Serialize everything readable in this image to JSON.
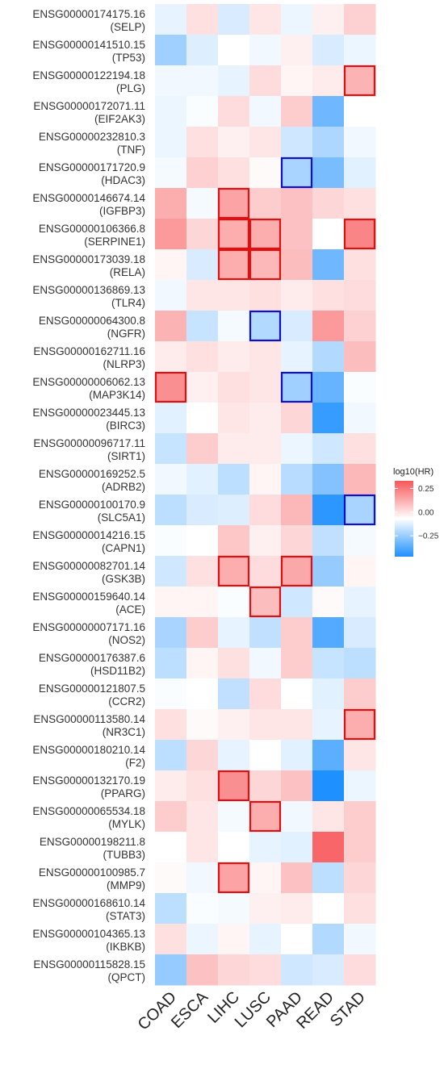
{
  "chart_data": {
    "type": "heatmap",
    "columns": [
      "COAD",
      "ESCA",
      "LIHC",
      "LUSC",
      "PAAD",
      "READ",
      "STAD"
    ],
    "rows": [
      {
        "id": "ENSG00000174175.16",
        "gene": "(SELP)",
        "values": [
          -0.05,
          0.06,
          -0.08,
          0.05,
          -0.04,
          0.03,
          0.09
        ],
        "highlight": [
          "",
          "",
          "",
          "",
          "",
          "",
          ""
        ]
      },
      {
        "id": "ENSG00000141510.15",
        "gene": "(TP53)",
        "values": [
          -0.2,
          -0.07,
          0.0,
          -0.03,
          0.03,
          -0.08,
          -0.04
        ],
        "highlight": [
          "",
          "",
          "",
          "",
          "",
          "",
          ""
        ]
      },
      {
        "id": "ENSG00000122194.18",
        "gene": "(PLG)",
        "values": [
          -0.03,
          -0.03,
          -0.05,
          0.07,
          0.02,
          0.04,
          0.15
        ],
        "highlight": [
          "",
          "",
          "",
          "",
          "",
          "",
          "pos"
        ]
      },
      {
        "id": "ENSG00000172071.11",
        "gene": "(EIF2AK3)",
        "values": [
          -0.04,
          -0.01,
          0.07,
          -0.03,
          0.1,
          -0.3,
          0.0
        ],
        "highlight": [
          "",
          "",
          "",
          "",
          "",
          "",
          ""
        ]
      },
      {
        "id": "ENSG00000232810.3",
        "gene": "(TNF)",
        "values": [
          -0.04,
          0.06,
          0.03,
          0.05,
          -0.1,
          -0.17,
          -0.03
        ],
        "highlight": [
          "",
          "",
          "",
          "",
          "",
          "",
          ""
        ]
      },
      {
        "id": "ENSG00000171720.9",
        "gene": "(HDAC3)",
        "values": [
          -0.02,
          0.09,
          0.06,
          0.01,
          -0.18,
          -0.28,
          -0.06
        ],
        "highlight": [
          "",
          "",
          "",
          "",
          "neg",
          "",
          ""
        ]
      },
      {
        "id": "ENSG00000146674.14",
        "gene": "(IGFBP3)",
        "values": [
          0.16,
          -0.02,
          0.18,
          0.1,
          0.12,
          0.08,
          0.06
        ],
        "highlight": [
          "",
          "",
          "pos",
          "",
          "",
          "",
          ""
        ]
      },
      {
        "id": "ENSG00000106366.8",
        "gene": "(SERPINE1)",
        "values": [
          0.2,
          0.08,
          0.16,
          0.16,
          0.12,
          0.0,
          0.24
        ],
        "highlight": [
          "",
          "",
          "pos",
          "pos",
          "",
          "",
          "pos"
        ]
      },
      {
        "id": "ENSG00000173039.18",
        "gene": "(RELA)",
        "values": [
          0.02,
          -0.08,
          0.16,
          0.14,
          0.13,
          -0.3,
          0.06
        ],
        "highlight": [
          "",
          "",
          "pos",
          "pos",
          "",
          "",
          ""
        ]
      },
      {
        "id": "ENSG00000136869.13",
        "gene": "(TLR4)",
        "values": [
          -0.03,
          0.05,
          0.05,
          0.06,
          0.04,
          0.06,
          0.07
        ],
        "highlight": [
          "",
          "",
          "",
          "",
          "",
          "",
          ""
        ]
      },
      {
        "id": "ENSG00000064300.8",
        "gene": "(NGFR)",
        "values": [
          0.15,
          -0.12,
          -0.02,
          -0.16,
          -0.08,
          0.2,
          0.09
        ],
        "highlight": [
          "",
          "",
          "",
          "neg",
          "",
          "",
          ""
        ]
      },
      {
        "id": "ENSG00000162711.16",
        "gene": "(NLRP3)",
        "values": [
          0.04,
          0.06,
          0.04,
          0.05,
          -0.05,
          -0.16,
          0.13
        ],
        "highlight": [
          "",
          "",
          "",
          "",
          "",
          "",
          ""
        ]
      },
      {
        "id": "ENSG00000006062.13",
        "gene": "(MAP3K14)",
        "values": [
          0.22,
          0.03,
          0.06,
          0.05,
          -0.2,
          -0.32,
          -0.01
        ],
        "highlight": [
          "pos",
          "",
          "",
          "",
          "neg",
          "",
          ""
        ]
      },
      {
        "id": "ENSG00000023445.13",
        "gene": "(BIRC3)",
        "values": [
          -0.06,
          0.0,
          0.05,
          0.04,
          0.08,
          -0.42,
          -0.03
        ],
        "highlight": [
          "",
          "",
          "",
          "",
          "",
          "",
          ""
        ]
      },
      {
        "id": "ENSG00000096717.11",
        "gene": "(SIRT1)",
        "values": [
          -0.12,
          0.1,
          0.04,
          0.04,
          -0.04,
          -0.1,
          0.06
        ],
        "highlight": [
          "",
          "",
          "",
          "",
          "",
          "",
          ""
        ]
      },
      {
        "id": "ENSG00000169252.5",
        "gene": "(ADRB2)",
        "values": [
          -0.03,
          -0.06,
          -0.14,
          0.02,
          -0.15,
          -0.26,
          0.14
        ],
        "highlight": [
          "",
          "",
          "",
          "",
          "",
          "",
          ""
        ]
      },
      {
        "id": "ENSG00000100170.9",
        "gene": "(SLC5A1)",
        "values": [
          -0.14,
          -0.08,
          -0.07,
          0.07,
          0.14,
          -0.44,
          -0.18
        ],
        "highlight": [
          "",
          "",
          "",
          "",
          "",
          "",
          "neg"
        ]
      },
      {
        "id": "ENSG00000014216.15",
        "gene": "(CAPN1)",
        "values": [
          -0.01,
          0.0,
          0.11,
          0.03,
          0.08,
          -0.13,
          -0.02
        ],
        "highlight": [
          "",
          "",
          "",
          "",
          "",
          "",
          ""
        ]
      },
      {
        "id": "ENSG00000082701.14",
        "gene": "(GSK3B)",
        "values": [
          -0.1,
          0.06,
          0.16,
          0.07,
          0.17,
          -0.22,
          0.02
        ],
        "highlight": [
          "",
          "",
          "pos",
          "",
          "pos",
          "",
          ""
        ]
      },
      {
        "id": "ENSG00000159640.14",
        "gene": "(ACE)",
        "values": [
          0.02,
          0.02,
          -0.01,
          0.13,
          -0.1,
          0.01,
          -0.05
        ],
        "highlight": [
          "",
          "",
          "",
          "pos",
          "",
          "",
          ""
        ]
      },
      {
        "id": "ENSG00000007171.16",
        "gene": "(NOS2)",
        "values": [
          -0.18,
          0.1,
          -0.05,
          -0.13,
          0.1,
          -0.36,
          -0.08
        ],
        "highlight": [
          "",
          "",
          "",
          "",
          "",
          "",
          ""
        ]
      },
      {
        "id": "ENSG00000176387.6",
        "gene": "(HSD11B2)",
        "values": [
          -0.14,
          0.02,
          0.06,
          -0.03,
          0.1,
          -0.12,
          -0.14
        ],
        "highlight": [
          "",
          "",
          "",
          "",
          "",
          "",
          ""
        ]
      },
      {
        "id": "ENSG00000121807.5",
        "gene": "(CCR2)",
        "values": [
          -0.01,
          0.0,
          -0.13,
          0.07,
          0.0,
          -0.06,
          0.1
        ],
        "highlight": [
          "",
          "",
          "",
          "",
          "",
          "",
          ""
        ]
      },
      {
        "id": "ENSG00000113580.14",
        "gene": "(NR3C1)",
        "values": [
          0.06,
          0.01,
          0.03,
          0.05,
          0.05,
          -0.05,
          0.16
        ],
        "highlight": [
          "",
          "",
          "",
          "",
          "",
          "",
          "pos"
        ]
      },
      {
        "id": "ENSG00000180210.14",
        "gene": "(F2)",
        "values": [
          -0.14,
          0.08,
          -0.05,
          0.0,
          -0.06,
          -0.34,
          0.05
        ],
        "highlight": [
          "",
          "",
          "",
          "",
          "",
          "",
          ""
        ]
      },
      {
        "id": "ENSG00000132170.19",
        "gene": "(PPARG)",
        "values": [
          0.04,
          0.06,
          0.22,
          0.08,
          0.12,
          -0.47,
          -0.04
        ],
        "highlight": [
          "",
          "",
          "pos",
          "",
          "",
          "",
          ""
        ]
      },
      {
        "id": "ENSG00000065534.18",
        "gene": "(MYLK)",
        "values": [
          0.1,
          0.05,
          -0.02,
          0.16,
          -0.03,
          0.05,
          0.1
        ],
        "highlight": [
          "",
          "",
          "",
          "pos",
          "",
          "",
          ""
        ]
      },
      {
        "id": "ENSG00000198211.8",
        "gene": "(TUBB3)",
        "values": [
          0.0,
          0.05,
          0.0,
          -0.05,
          -0.06,
          0.3,
          0.1
        ],
        "highlight": [
          "",
          "",
          "",
          "",
          "",
          "",
          ""
        ]
      },
      {
        "id": "ENSG00000100985.7",
        "gene": "(MMP9)",
        "values": [
          0.01,
          -0.03,
          0.18,
          0.02,
          0.12,
          -0.14,
          0.08
        ],
        "highlight": [
          "",
          "",
          "pos",
          "",
          "",
          "",
          ""
        ]
      },
      {
        "id": "ENSG00000168610.14",
        "gene": "(STAT3)",
        "values": [
          -0.14,
          -0.01,
          -0.02,
          0.03,
          0.04,
          0.0,
          0.06
        ],
        "highlight": [
          "",
          "",
          "",
          "",
          "",
          "",
          ""
        ]
      },
      {
        "id": "ENSG00000104365.13",
        "gene": "(IKBKB)",
        "values": [
          0.06,
          -0.04,
          0.02,
          -0.05,
          0.0,
          -0.16,
          -0.03
        ],
        "highlight": [
          "",
          "",
          "",
          "",
          "",
          "",
          ""
        ]
      },
      {
        "id": "ENSG00000115828.15",
        "gene": "(QPCT)",
        "values": [
          -0.22,
          0.12,
          0.08,
          0.07,
          -0.1,
          -0.08,
          0.07
        ],
        "highlight": [
          "",
          "",
          "",
          "",
          "",
          "",
          ""
        ]
      }
    ],
    "legend": {
      "title": "log10(HR)",
      "ticks": [
        0.25,
        0.0,
        -0.25
      ],
      "tick_labels": [
        "0.25",
        "0.00",
        "−0.25"
      ],
      "range": [
        -0.47,
        0.33
      ]
    },
    "colors": {
      "low": "#1E90FF",
      "mid": "#FFFFFF",
      "high": "#F8575A",
      "highlight_pos": "#E01010",
      "highlight_neg": "#1010C8"
    }
  }
}
